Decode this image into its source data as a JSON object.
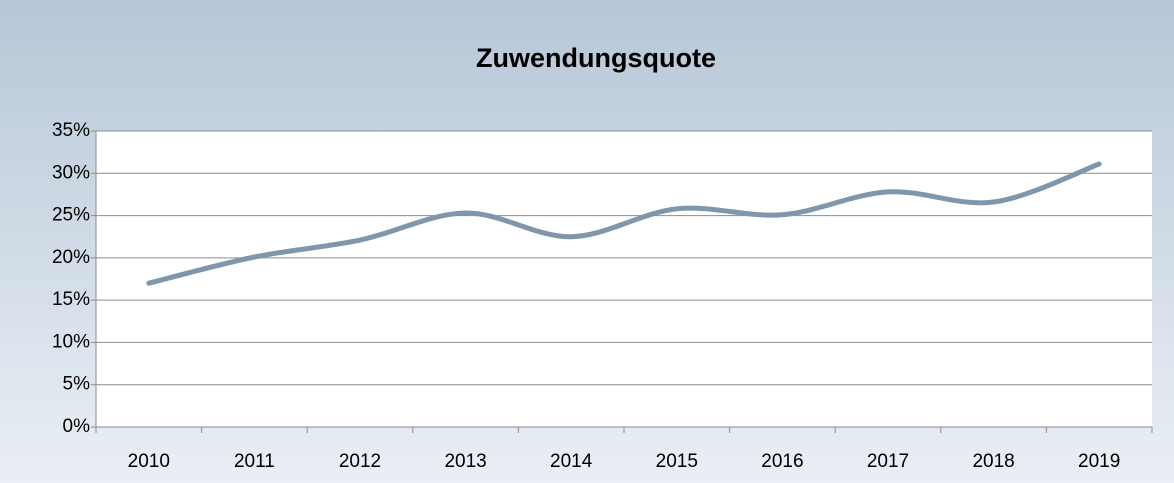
{
  "chart_data": {
    "type": "line",
    "title": "Zuwendungsquote",
    "categories": [
      "2010",
      "2011",
      "2012",
      "2013",
      "2014",
      "2015",
      "2016",
      "2017",
      "2018",
      "2019"
    ],
    "series": [
      {
        "name": "Zuwendungsquote",
        "color": "#7f96ab",
        "values": [
          17.0,
          20.1,
          22.1,
          25.3,
          22.5,
          25.8,
          25.1,
          27.8,
          26.6,
          31.1
        ]
      }
    ],
    "smooth": true,
    "ylim": [
      0,
      35
    ],
    "yticks": [
      {
        "value": 0,
        "label": "0%"
      },
      {
        "value": 5,
        "label": "5%"
      },
      {
        "value": 10,
        "label": "10%"
      },
      {
        "value": 15,
        "label": "15%"
      },
      {
        "value": 20,
        "label": "20%"
      },
      {
        "value": 25,
        "label": "25%"
      },
      {
        "value": 30,
        "label": "30%"
      },
      {
        "value": 35,
        "label": "35%"
      }
    ],
    "grid": true
  }
}
